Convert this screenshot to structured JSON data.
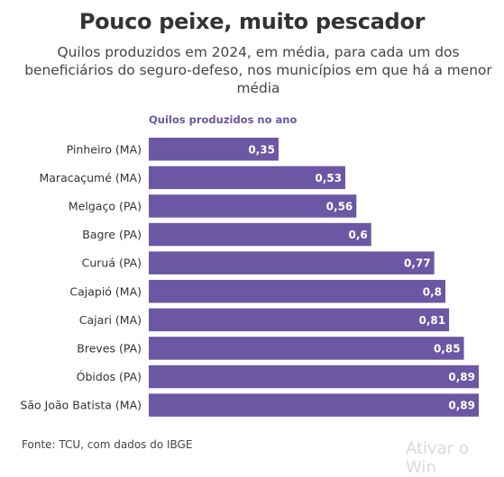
{
  "chart_data": {
    "type": "bar",
    "orientation": "horizontal",
    "title": "Pouco peixe, muito pescador",
    "subtitle": "Quilos produzidos em 2024, em média, para cada um dos beneficiários do seguro-defeso, nos municípios em que há a menor média",
    "axis_title": "Quilos produzidos no ano",
    "categories": [
      "Pinheiro (MA)",
      "Maracaçumé (MA)",
      "Melgaço (PA)",
      "Bagre (PA)",
      "Curuá (PA)",
      "Cajapió (MA)",
      "Cajari (MA)",
      "Breves (PA)",
      "Óbidos (PA)",
      "São João Batista (MA)"
    ],
    "values": [
      0.35,
      0.53,
      0.56,
      0.6,
      0.77,
      0.8,
      0.81,
      0.85,
      0.89,
      0.89
    ],
    "value_labels": [
      "0,35",
      "0,53",
      "0,56",
      "0,6",
      "0,77",
      "0,8",
      "0,81",
      "0,85",
      "0,89",
      "0,89"
    ],
    "xlim": [
      0,
      0.89
    ],
    "bar_color": "#6b57a3",
    "label_color": "#ffffff"
  },
  "source": "Fonte: TCU, com dados do IBGE",
  "watermark": "Ativar o Win"
}
